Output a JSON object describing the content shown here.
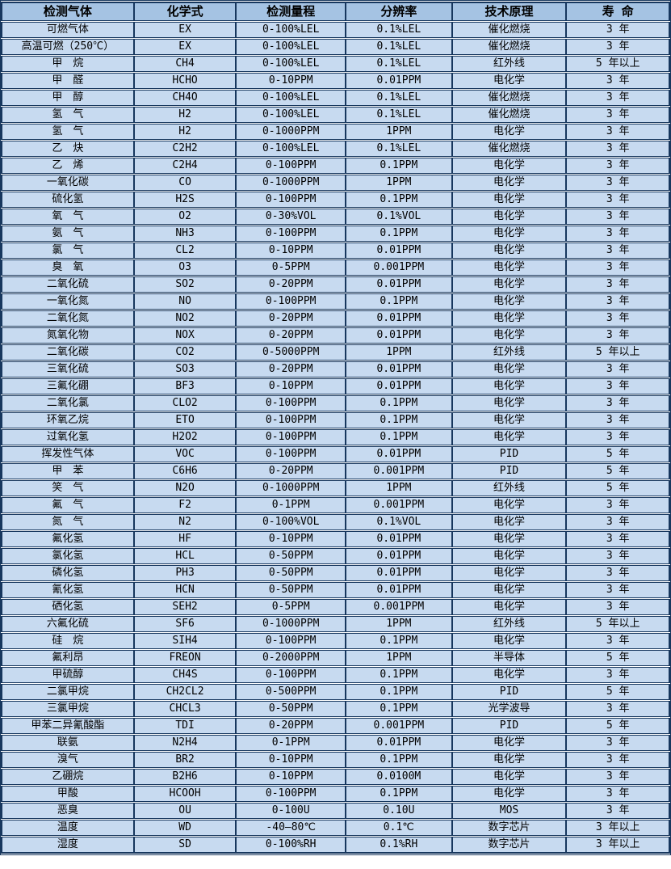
{
  "colors": {
    "header_bg": "#a5c3e3",
    "row_bg": "#c7daf0",
    "border": "#17375e",
    "gap_line": "#ffffff",
    "text": "#000000"
  },
  "table": {
    "headers": [
      "检测气体",
      "化学式",
      "检测量程",
      "分辨率",
      "技术原理",
      "寿 命"
    ],
    "rows": [
      [
        "可燃气体",
        "EX",
        "0-100%LEL",
        "0.1%LEL",
        "催化燃烧",
        "3 年"
      ],
      [
        "高温可燃（250℃）",
        "EX",
        "0-100%LEL",
        "0.1%LEL",
        "催化燃烧",
        "3 年"
      ],
      [
        "甲　烷",
        "CH4",
        "0-100%LEL",
        "0.1%LEL",
        "红外线",
        "5 年以上"
      ],
      [
        "甲　醛",
        "HCHO",
        "0-10PPM",
        "0.01PPM",
        "电化学",
        "3 年"
      ],
      [
        "甲　醇",
        "CH4O",
        "0-100%LEL",
        "0.1%LEL",
        "催化燃烧",
        "3 年"
      ],
      [
        "氢　气",
        "H2",
        "0-100%LEL",
        "0.1%LEL",
        "催化燃烧",
        "3 年"
      ],
      [
        "氢　气",
        "H2",
        "0-1000PPM",
        "1PPM",
        "电化学",
        "3 年"
      ],
      [
        "乙　炔",
        "C2H2",
        "0-100%LEL",
        "0.1%LEL",
        "催化燃烧",
        "3 年"
      ],
      [
        "乙　烯",
        "C2H4",
        "0-100PPM",
        "0.1PPM",
        "电化学",
        "3 年"
      ],
      [
        "一氧化碳",
        "CO",
        "0-1000PPM",
        "1PPM",
        "电化学",
        "3 年"
      ],
      [
        "硫化氢",
        "H2S",
        "0-100PPM",
        "0.1PPM",
        "电化学",
        "3 年"
      ],
      [
        "氧　气",
        "O2",
        "0-30%VOL",
        "0.1%VOL",
        "电化学",
        "3 年"
      ],
      [
        "氨　气",
        "NH3",
        "0-100PPM",
        "0.1PPM",
        "电化学",
        "3 年"
      ],
      [
        "氯　气",
        "CL2",
        "0-10PPM",
        "0.01PPM",
        "电化学",
        "3 年"
      ],
      [
        "臭　氧",
        "O3",
        "0-5PPM",
        "0.001PPM",
        "电化学",
        "3 年"
      ],
      [
        "二氧化硫",
        "SO2",
        "0-20PPM",
        "0.01PPM",
        "电化学",
        "3 年"
      ],
      [
        "一氧化氮",
        "NO",
        "0-100PPM",
        "0.1PPM",
        "电化学",
        "3 年"
      ],
      [
        "二氧化氮",
        "NO2",
        "0-20PPM",
        "0.01PPM",
        "电化学",
        "3 年"
      ],
      [
        "氮氧化物",
        "NOX",
        "0-20PPM",
        "0.01PPM",
        "电化学",
        "3 年"
      ],
      [
        "二氧化碳",
        "CO2",
        "0-5000PPM",
        "1PPM",
        "红外线",
        "5 年以上"
      ],
      [
        "三氧化硫",
        "SO3",
        "0-20PPM",
        "0.01PPM",
        "电化学",
        "3 年"
      ],
      [
        "三氟化硼",
        "BF3",
        "0-10PPM",
        "0.01PPM",
        "电化学",
        "3 年"
      ],
      [
        "二氧化氯",
        "CLO2",
        "0-100PPM",
        "0.1PPM",
        "电化学",
        "3 年"
      ],
      [
        "环氧乙烷",
        "ETO",
        "0-100PPM",
        "0.1PPM",
        "电化学",
        "3 年"
      ],
      [
        "过氧化氢",
        "H2O2",
        "0-100PPM",
        "0.1PPM",
        "电化学",
        "3 年"
      ],
      [
        "挥发性气体",
        "VOC",
        "0-100PPM",
        "0.01PPM",
        "PID",
        "5 年"
      ],
      [
        "甲　苯",
        "C6H6",
        "0-20PPM",
        "0.001PPM",
        "PID",
        "5 年"
      ],
      [
        "笑　气",
        "N2O",
        "0-1000PPM",
        "1PPM",
        "红外线",
        "5 年"
      ],
      [
        "氟　气",
        "F2",
        "0-1PPM",
        "0.001PPM",
        "电化学",
        "3 年"
      ],
      [
        "氮　气",
        "N2",
        "0-100%VOL",
        "0.1%VOL",
        "电化学",
        "3 年"
      ],
      [
        "氟化氢",
        "HF",
        "0-10PPM",
        "0.01PPM",
        "电化学",
        "3 年"
      ],
      [
        "氯化氢",
        "HCL",
        "0-50PPM",
        "0.01PPM",
        "电化学",
        "3 年"
      ],
      [
        "磷化氢",
        "PH3",
        "0-50PPM",
        "0.01PPM",
        "电化学",
        "3 年"
      ],
      [
        "氰化氢",
        "HCN",
        "0-50PPM",
        "0.01PPM",
        "电化学",
        "3 年"
      ],
      [
        "硒化氢",
        "SEH2",
        "0-5PPM",
        "0.001PPM",
        "电化学",
        "3 年"
      ],
      [
        "六氟化硫",
        "SF6",
        "0-1000PPM",
        "1PPM",
        "红外线",
        "5 年以上"
      ],
      [
        "硅　烷",
        "SIH4",
        "0-100PPM",
        "0.1PPM",
        "电化学",
        "3 年"
      ],
      [
        "氟利昂",
        "FREON",
        "0-2000PPM",
        "1PPM",
        "半导体",
        "5 年"
      ],
      [
        "甲硫醇",
        "CH4S",
        "0-100PPM",
        "0.1PPM",
        "电化学",
        "3 年"
      ],
      [
        "二氯甲烷",
        "CH2CL2",
        "0-500PPM",
        "0.1PPM",
        "PID",
        "5 年"
      ],
      [
        "三氯甲烷",
        "CHCL3",
        "0-50PPM",
        "0.1PPM",
        "光学波导",
        "3 年"
      ],
      [
        "甲苯二异氰酸酯",
        "TDI",
        "0-20PPM",
        "0.001PPM",
        "PID",
        "5 年"
      ],
      [
        "联氨",
        "N2H4",
        "0-1PPM",
        "0.01PPM",
        "电化学",
        "3 年"
      ],
      [
        "溴气",
        "BR2",
        "0-10PPM",
        "0.1PPM",
        "电化学",
        "3 年"
      ],
      [
        "乙硼烷",
        "B2H6",
        "0-10PPM",
        "0.0100M",
        "电化学",
        "3 年"
      ],
      [
        "甲酸",
        "HCOOH",
        "0-100PPM",
        "0.1PPM",
        "电化学",
        "3 年"
      ],
      [
        "恶臭",
        "OU",
        "0-100U",
        "0.10U",
        "MOS",
        "3 年"
      ],
      [
        "温度",
        "WD",
        "-40—80℃",
        "0.1℃",
        "数字芯片",
        "3 年以上"
      ],
      [
        "湿度",
        "SD",
        "0-100%RH",
        "0.1%RH",
        "数字芯片",
        "3 年以上"
      ]
    ]
  }
}
